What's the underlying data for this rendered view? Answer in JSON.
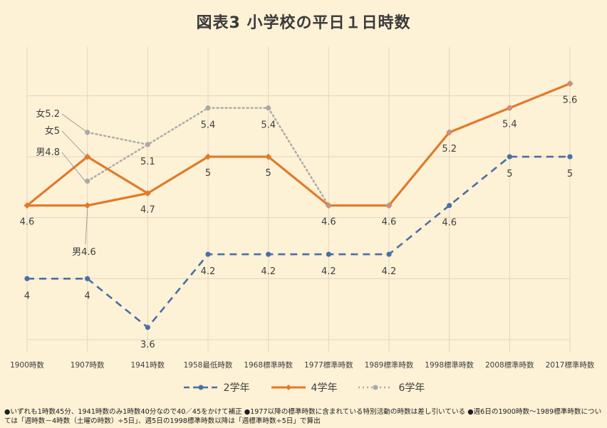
{
  "chart_data": {
    "type": "line",
    "title": "図表3 小学校の平日１日時数",
    "categories": [
      "1900時数",
      "1907時数",
      "1941時数",
      "1958最低時数",
      "1968標準時数",
      "1977標準時数",
      "1989標準時数",
      "1998標準時数",
      "2008標準時数",
      "2017標準時数"
    ],
    "ylim": [
      3.4,
      5.9
    ],
    "grid": true,
    "legend_position": "bottom",
    "series": [
      {
        "name": "2学年",
        "values": [
          4,
          4,
          3.6,
          4.2,
          4.2,
          4.2,
          4.2,
          4.6,
          5,
          5
        ],
        "color": "#4a6fa5",
        "style": "dashed",
        "labels": [
          "4",
          "4",
          "3.6",
          "4.2",
          "4.2",
          "4.2",
          "4.2",
          "4.6",
          "5",
          "5"
        ]
      },
      {
        "name": "4学年",
        "values": [
          4.6,
          4.6,
          4.7,
          5,
          5,
          4.6,
          4.6,
          5.2,
          5.4,
          5.6
        ],
        "color": "#e07b2a",
        "style": "solid",
        "labels": [
          "4.6",
          "",
          "4.7",
          "5",
          "5",
          "4.6",
          "4.6",
          "5.2",
          "5.4",
          "5.6"
        ],
        "branch_1907": {
          "male": 4.6,
          "female": 5.0
        }
      },
      {
        "name": "6学年",
        "values": [
          null,
          4.8,
          5.1,
          5.4,
          5.4,
          4.6,
          4.6,
          5.2,
          5.4,
          5.6
        ],
        "color": "#a9a9a9",
        "style": "dotted",
        "labels": [
          "",
          "",
          "5.1",
          "5.4",
          "5.4",
          "",
          "",
          "",
          "",
          ""
        ],
        "branch_1907": {
          "male": 4.8,
          "female": 5.2
        }
      }
    ],
    "annotations": [
      "女5.2",
      "女5",
      "男4.8",
      "男4.6"
    ]
  },
  "footnote": "●いずれも1時数45分、1941時数のみ1時数40分なので40／45をかけて補正 ●1977以降の標準時数に含まれている特別活動の時数は差し引いている ●週6日の1900時数～1989標準時数については「週時数－4時数（土曜の時数）÷5日」、週5日の1998標準時数以降は「週標準時数÷5日」で算出"
}
